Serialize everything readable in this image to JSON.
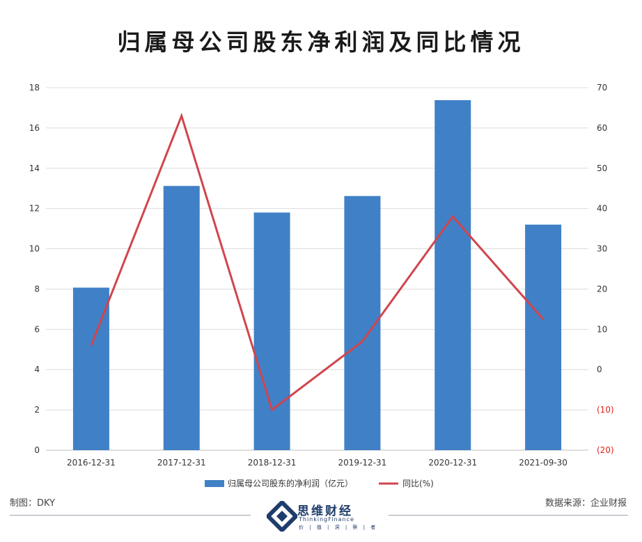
{
  "chart_data": {
    "type": "bar",
    "title": "归属母公司股东净利润及同比情况",
    "categories": [
      "2016-12-31",
      "2017-12-31",
      "2018-12-31",
      "2019-12-31",
      "2020-12-31",
      "2021-09-30"
    ],
    "series": [
      {
        "name": "归属母公司股东的净利润（亿元）",
        "type": "bar",
        "axis": "left",
        "color": "#4080c6",
        "values": [
          8.07,
          13.12,
          11.8,
          12.62,
          17.38,
          11.2
        ]
      },
      {
        "name": "同比(%)",
        "type": "line",
        "axis": "right",
        "color": "#d0454c",
        "values": [
          6,
          63,
          -10,
          7,
          38,
          12.5
        ]
      }
    ],
    "y_left": {
      "min": 0,
      "max": 18,
      "ticks": [
        "0",
        "2",
        "4",
        "6",
        "8",
        "10",
        "12",
        "14",
        "16",
        "18"
      ]
    },
    "y_right": {
      "min": -20,
      "max": 70,
      "ticks": [
        "(20)",
        "(10)",
        "0",
        "10",
        "20",
        "30",
        "40",
        "50",
        "60",
        "70"
      ],
      "negative_color": "#e0201b"
    },
    "grid": true,
    "legend_position": "bottom"
  },
  "footer": {
    "left": "制图：DKY",
    "right": "数据来源：企业财报"
  },
  "logo": {
    "name_cn": "思维财经",
    "name_en": "ThinkingFinance",
    "sub": "价 | 值 | 洞 | 察 | 者"
  }
}
